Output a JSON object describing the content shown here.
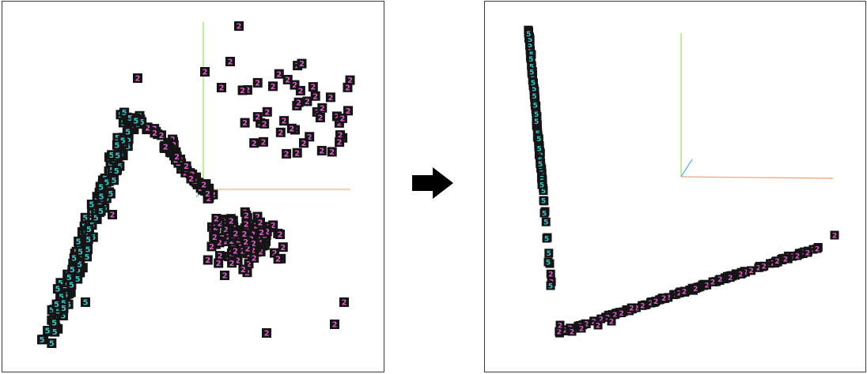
{
  "figure": {
    "left_panel": {
      "glyphs": {
        "five": "5",
        "two": "2"
      },
      "colors": {
        "tile": "#141414",
        "five_stroke": "#3ec6cc",
        "two_stroke": "#de5fc8",
        "axis_y": "#9cdc5c",
        "axis_x": "#f0b08c",
        "axis_z": "#5ab4e6"
      }
    },
    "right_panel": {
      "glyphs": {
        "five": "5",
        "two": "2"
      },
      "colors": {
        "tile": "#141414",
        "five_stroke": "#3ec6cc",
        "two_stroke": "#de5fc8",
        "axis_y": "#9cdc5c",
        "axis_x": "#f0a070",
        "axis_z": "#5ab4e6"
      }
    },
    "transition_arrow": {
      "icon": "right-arrow-icon",
      "color": "#000000"
    }
  }
}
